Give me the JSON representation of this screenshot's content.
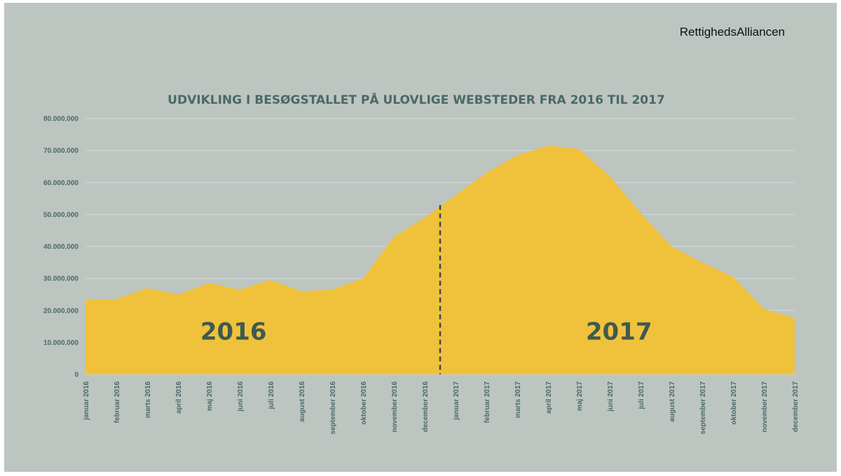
{
  "brand": "RettighedsAlliancen",
  "chart_data": {
    "type": "area",
    "title": "UDVIKLING I BESØGSTALLET PÅ ULOVLIGE WEBSTEDER FRA 2016 TIL 2017",
    "xlabel": "",
    "ylabel": "",
    "categories": [
      "januar 2016",
      "februar 2016",
      "marts 2016",
      "april 2016",
      "maj 2016",
      "juni 2016",
      "juli 2016",
      "august 2016",
      "september 2016",
      "oktober 2016",
      "november 2016",
      "december 2016",
      "januar 2017",
      "februar 2017",
      "marts 2017",
      "april 2017",
      "maj 2017",
      "juni 2017",
      "juli 2017",
      "august 2017",
      "september 2017",
      "oktober 2017",
      "november 2017",
      "december 2017"
    ],
    "series": [
      {
        "values": [
          23500000,
          23500000,
          27000000,
          25000000,
          28500000,
          26500000,
          29500000,
          26000000,
          26500000,
          30000000,
          43000000,
          49000000,
          56000000,
          63000000,
          68500000,
          71500000,
          70500000,
          62000000,
          50500000,
          40000000,
          35000000,
          30500000,
          20500000,
          17500000
        ],
        "color": "#f0c23b"
      }
    ],
    "ylim": [
      0,
      80000000
    ],
    "yticks": [
      "0",
      "10.000.000",
      "20.000.000",
      "30.000.000",
      "40.000.000",
      "50.000.000",
      "60.000.000",
      "70.000.000",
      "80.000.000"
    ],
    "grid": true,
    "annotations": [
      {
        "text": "2016",
        "x_index": 4.8,
        "y": 13500000
      },
      {
        "text": "2017",
        "x_index": 17.3,
        "y": 13500000
      }
    ],
    "divider_between": [
      "december 2016",
      "januar 2017"
    ],
    "colors": {
      "area": "#f0c23b",
      "text": "#4b6966",
      "year_label": "#3f5a50",
      "background": "#bdc5c1",
      "divider": "#3a4a44"
    }
  }
}
